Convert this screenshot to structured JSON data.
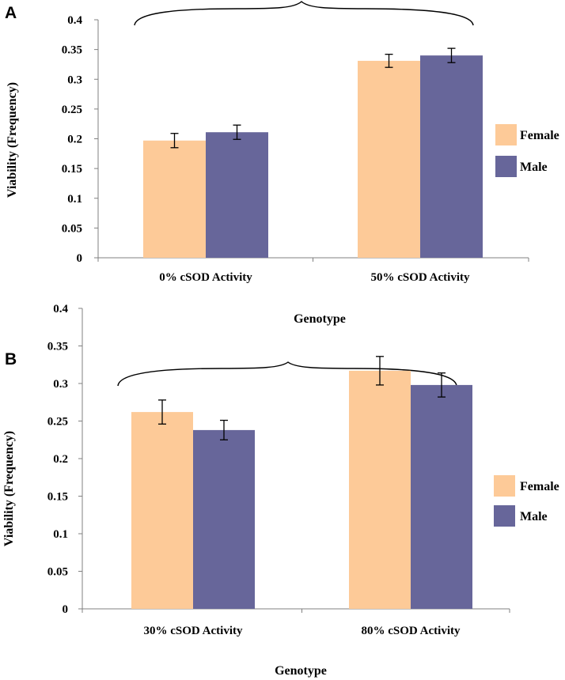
{
  "chart_data": [
    {
      "type": "bar",
      "panel": "A",
      "categories": [
        "0% cSOD Activity",
        "50% cSOD Activity"
      ],
      "series": [
        {
          "name": "Female",
          "values": [
            0.197,
            0.331
          ],
          "errors": [
            0.012,
            0.011
          ],
          "color": "#FDCA98"
        },
        {
          "name": "Male",
          "values": [
            0.211,
            0.34
          ],
          "errors": [
            0.012,
            0.012
          ],
          "color": "#67669A"
        }
      ],
      "ticks": [
        "0",
        "0.05",
        "0.1",
        "0.15",
        "0.2",
        "0.25",
        "0.3",
        "0.35",
        "0.4"
      ],
      "xlabel": "Genotype",
      "ylabel": "Viability (Frequency)",
      "ylim": [
        0,
        0.4
      ],
      "grid": false,
      "legend": "right"
    },
    {
      "type": "bar",
      "panel": "B",
      "categories": [
        "30% cSOD Activity",
        "80% cSOD Activity"
      ],
      "series": [
        {
          "name": "Female",
          "values": [
            0.262,
            0.317
          ],
          "errors": [
            0.016,
            0.019
          ],
          "color": "#FDCA98"
        },
        {
          "name": "Male",
          "values": [
            0.238,
            0.298
          ],
          "errors": [
            0.013,
            0.016
          ],
          "color": "#67669A"
        }
      ],
      "ticks": [
        "0",
        "0.05",
        "0.1",
        "0.15",
        "0.2",
        "0.25",
        "0.3",
        "0.35",
        "0.4"
      ],
      "xlabel": "Genotype",
      "ylabel": "Viability (Frequency)",
      "ylim": [
        0,
        0.4
      ],
      "grid": false,
      "legend": "right"
    }
  ]
}
